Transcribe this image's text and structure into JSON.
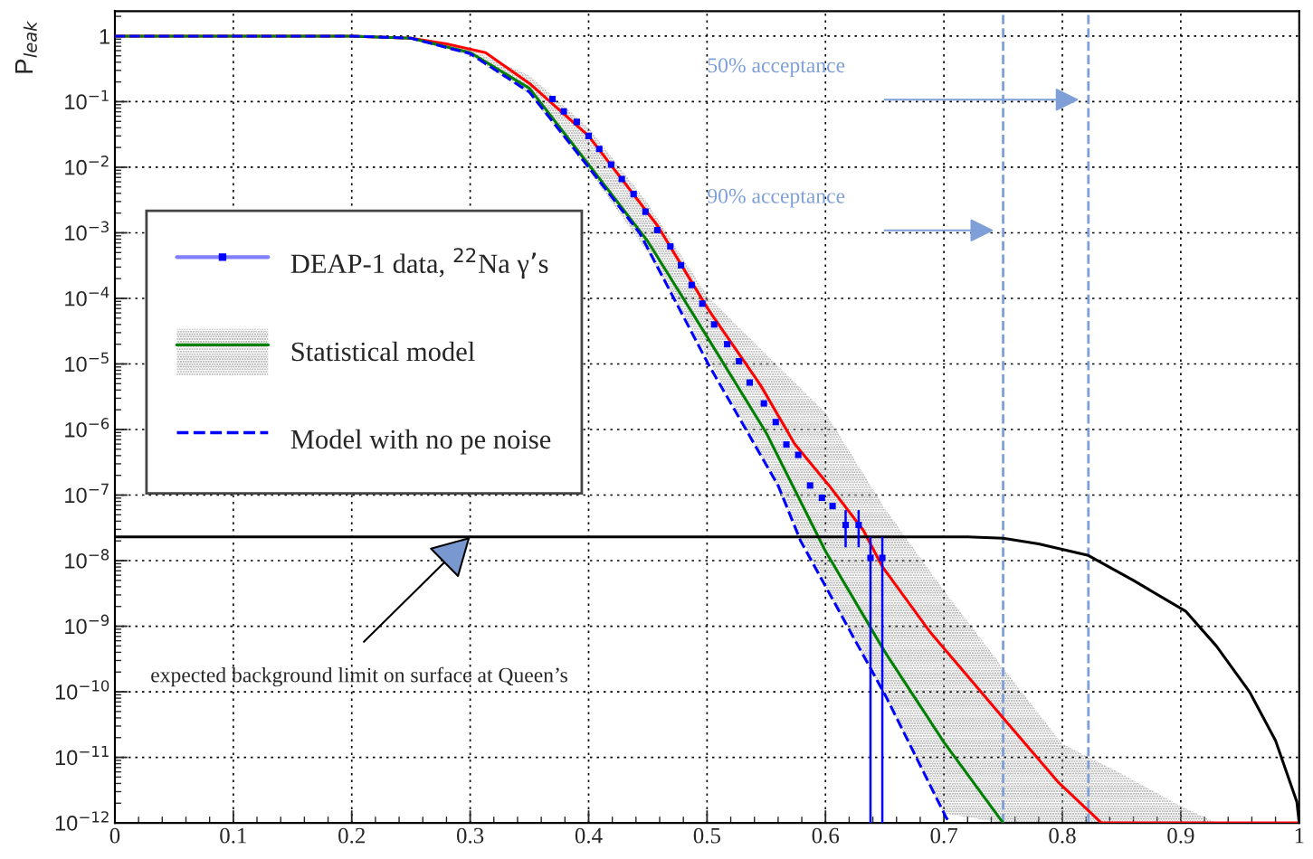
{
  "chart_data": {
    "type": "line",
    "ylabel": "P$_{leak}$",
    "xlim": [
      0,
      1
    ],
    "ylim": [
      1e-12,
      2.4
    ],
    "log": "y",
    "xticks": [
      0,
      0.1,
      0.2,
      0.3,
      0.4,
      0.5,
      0.6,
      0.7,
      0.8,
      0.9,
      1
    ],
    "yticks": [
      {
        "value": 1e-12,
        "label": "10$^{−12}$"
      },
      {
        "value": 1e-11,
        "label": "10$^{−11}$"
      },
      {
        "value": 1e-10,
        "label": "10$^{−10}$"
      },
      {
        "value": 1e-09,
        "label": "10$^{−9}$"
      },
      {
        "value": 1e-08,
        "label": "10$^{−8}$"
      },
      {
        "value": 1e-07,
        "label": "10$^{−7}$"
      },
      {
        "value": 1e-06,
        "label": "10$^{−6}$"
      },
      {
        "value": 1e-05,
        "label": "10$^{−5}$"
      },
      {
        "value": 0.0001,
        "label": "10$^{−4}$"
      },
      {
        "value": 0.001,
        "label": "10$^{−3}$"
      },
      {
        "value": 0.01,
        "label": "10$^{−2}$"
      },
      {
        "value": 0.1,
        "label": "10$^{−1}$"
      },
      1
    ],
    "grid": true,
    "legend": "left",
    "series": [
      {
        "color": "#ff0000",
        "line_style": "solid",
        "x": [
          0,
          0.2,
          0.25,
          0.28,
          0.313,
          0.35,
          0.4,
          0.458,
          0.501,
          0.545,
          0.574,
          0.603,
          0.632,
          0.648,
          0.688,
          0.75,
          0.797,
          0.833,
          1.0
        ],
        "values": [
          1,
          1,
          0.93,
          0.76,
          0.56,
          0.19,
          0.03,
          0.0013,
          6.8e-05,
          4.8e-06,
          6e-07,
          1.4e-07,
          2.9e-08,
          8.1e-09,
          8.3e-10,
          4e-11,
          4.1e-12,
          1e-12,
          1e-12
        ]
      },
      {
        "name": "Statistical model",
        "color": "#008000",
        "line_style": "solid",
        "x": [
          0,
          0.2,
          0.25,
          0.3,
          0.35,
          0.4,
          0.45,
          0.5,
          0.55,
          0.6,
          0.65,
          0.7,
          0.75,
          0.8,
          0.85,
          0.9,
          0.93
        ],
        "values": [
          1,
          1,
          0.93,
          0.56,
          0.16,
          0.011,
          0.00074,
          2.6e-05,
          8.9e-07,
          1.4e-08,
          4.1e-10,
          1.7e-11,
          1e-12,
          null,
          null,
          null,
          null
        ],
        "upper": [
          1,
          1,
          0.95,
          0.63,
          0.25,
          0.04,
          0.0028,
          0.00011,
          1.4e-05,
          1.8e-06,
          6.3e-08,
          3.5e-09,
          2.3e-10,
          1.6e-11,
          5.6e-12,
          1.8e-12,
          1e-12
        ],
        "lower": [
          1,
          1,
          0.91,
          0.5,
          0.13,
          0.0089,
          0.0005,
          1.3e-05,
          2.8e-07,
          4e-09,
          8.9e-11,
          1.4e-12,
          1e-12,
          1e-12,
          1e-12,
          1e-12,
          1e-12
        ]
      },
      {
        "name": "Model with no pe noise",
        "color": "#0000ff",
        "line_style": "dashed",
        "x": [
          0,
          0.2,
          0.25,
          0.3,
          0.35,
          0.4,
          0.443,
          0.501,
          0.56,
          0.579,
          0.651,
          0.702,
          0.705
        ],
        "values": [
          1,
          1,
          0.93,
          0.54,
          0.14,
          0.01,
          0.001,
          1e-05,
          1.4e-07,
          2e-08,
          8.5e-11,
          1.2e-12,
          1e-12
        ]
      },
      {
        "color": "#000000",
        "line_style": "solid",
        "x": [
          0,
          0.72,
          0.75,
          0.78,
          0.822,
          0.86,
          0.904,
          0.93,
          0.958,
          0.98,
          0.998,
          1.0
        ],
        "values": [
          2.3e-08,
          2.3e-08,
          2.2e-08,
          1.8e-08,
          1.2e-08,
          5e-09,
          1.7e-09,
          5e-10,
          1e-10,
          1.8e-11,
          2.1e-12,
          1e-12
        ]
      },
      {
        "type": "scatter",
        "name": "DEAP-1 data, $^{22}$Na γ’s",
        "color": "#0000ff",
        "marker": "square",
        "x": [
          0.3695,
          0.379,
          0.39,
          0.4,
          0.409,
          0.419,
          0.428,
          0.438,
          0.448,
          0.458,
          0.469,
          0.478,
          0.487,
          0.496,
          0.506,
          0.517,
          0.527,
          0.536,
          0.548,
          0.558,
          0.567,
          0.577,
          0.587,
          0.597,
          0.606,
          0.617,
          0.628,
          0.638,
          0.648
        ],
        "values": [
          0.11,
          0.071,
          0.049,
          0.03,
          0.019,
          0.011,
          0.0066,
          0.0039,
          0.0021,
          0.0011,
          0.00062,
          0.00032,
          0.00016,
          8.3e-05,
          4e-05,
          2e-05,
          1.1e-05,
          5.2e-06,
          2.5e-06,
          1.3e-06,
          5.9e-07,
          4.1e-07,
          1.4e-07,
          9.1e-08,
          6.8e-08,
          3.5e-08,
          3.5e-08,
          1.1e-08,
          1.1e-08
        ],
        "errors": [
          null,
          null,
          null,
          null,
          null,
          null,
          null,
          null,
          null,
          null,
          null,
          null,
          null,
          null,
          null,
          null,
          null,
          null,
          null,
          null,
          null,
          null,
          null,
          null,
          null,
          [
            1.6e-08,
            5.9e-08
          ],
          [
            1.6e-08,
            5.9e-08
          ],
          [
            1e-12,
            2.3e-08
          ],
          [
            1e-12,
            2.3e-08
          ]
        ]
      }
    ],
    "ref_lines": [
      {
        "axis": "x",
        "value": 0.822,
        "label": "50% acceptance",
        "color": "#7f9fd8",
        "line_style": "dashed"
      },
      {
        "axis": "x",
        "value": 0.75,
        "label": "90% acceptance",
        "color": "#7f9fd8",
        "line_style": "dashed"
      }
    ],
    "annotations": [
      {
        "text": "expected background limit on surface at Queen’s",
        "x": 0.3,
        "y": 2.3e-08
      }
    ]
  }
}
